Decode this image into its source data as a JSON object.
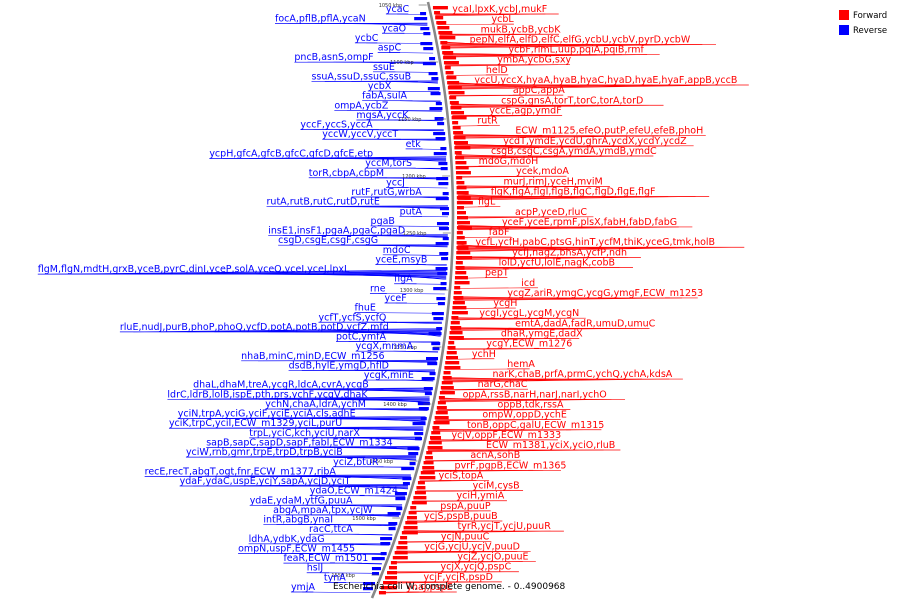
{
  "caption": "Escherichia coli W, complete genome. - 0..4900968",
  "legend": [
    {
      "label": "Forward",
      "color": "#ff0000"
    },
    {
      "label": "Reverse",
      "color": "#0000ff"
    }
  ],
  "colors": {
    "forward": "#ff0000",
    "reverse": "#0000ff",
    "backbone": "#888888"
  },
  "ticks": [
    "1050 kbp",
    "1100 kbp",
    "1150 kbp",
    "1200 kbp",
    "1250 kbp",
    "1300 kbp",
    "1350 kbp",
    "1400 kbp",
    "1450 kbp",
    "1500 kbp",
    "1550 kbp"
  ],
  "forward_labels": [
    [
      "ycaI",
      "lpxK",
      "ycbJ",
      "mukF"
    ],
    [
      "ycbL"
    ],
    [
      "mukB",
      "ycbB",
      "ycbK"
    ],
    [
      "pepN",
      "elfA",
      "elfD",
      "elfC",
      "elfG",
      "ycbU",
      "ycbV",
      "pyrD",
      "ycbW"
    ],
    [
      "ycbF",
      "rlmL",
      "uup",
      "pqiA",
      "pqiB",
      "rmf"
    ],
    [
      "ymbA",
      "ycbG",
      "sxy"
    ],
    [
      "helD"
    ],
    [
      "yccU",
      "yccX",
      "hyaA",
      "hyaB",
      "hyaC",
      "hyaD",
      "hyaE",
      "hyaF",
      "appB",
      "yccB"
    ],
    [
      "appC",
      "appA"
    ],
    [
      "cspG",
      "gnsA",
      "torT",
      "torC",
      "torA",
      "torD"
    ],
    [
      "yccE",
      "agp",
      "ymdF"
    ],
    [
      "rutR"
    ],
    [
      "ECW_m1125",
      "efeO",
      "putP",
      "efeU",
      "efeB",
      "phoH"
    ],
    [
      "ycdT",
      "ymdE",
      "ycdU",
      "ghrA",
      "ycdX",
      "ycdY",
      "ycdZ"
    ],
    [
      "csgB",
      "csgC",
      "csgA",
      "ymdA",
      "ymdB",
      "ymdC"
    ],
    [
      "mdoG",
      "mdoH"
    ],
    [
      "ycek",
      "mdoA"
    ],
    [
      "murJ",
      "rimJ",
      "yceH",
      "mviM"
    ],
    [
      "flgK",
      "flgA",
      "flgI",
      "flgB",
      "flgC",
      "flgD",
      "flgE",
      "flgF"
    ],
    [
      "flgL"
    ],
    [
      "acpP",
      "yceD",
      "rluC"
    ],
    [
      "yceF",
      "yceE",
      "rpmF",
      "plsX",
      "fabH",
      "fabD",
      "fabG"
    ],
    [
      "fabF"
    ],
    [
      "ycfL",
      "ycfH",
      "pabC",
      "ptsG",
      "hinT",
      "ycfM",
      "thiK",
      "yceG",
      "tmk",
      "holB"
    ],
    [
      "ycfJ",
      "nagZ",
      "bhsA",
      "ycfP",
      "ndh"
    ],
    [
      "lolD",
      "ycfU",
      "lolE",
      "nagK",
      "cobB"
    ],
    [
      "pepT"
    ],
    [
      "icd"
    ],
    [
      "ycgZ",
      "ariR",
      "ymgC",
      "ycgG",
      "ymgF",
      "ECW_m1253"
    ],
    [
      "ycgH"
    ],
    [
      "ycgI",
      "ycgL",
      "ycgM",
      "ycgN"
    ],
    [
      "emtA",
      "dadA",
      "fadR",
      "umuD",
      "umuC"
    ],
    [
      "dhaR",
      "ymgE",
      "dadX"
    ],
    [
      "ycgY",
      "ECW_m1276"
    ],
    [
      "ychH"
    ],
    [
      "hemA"
    ],
    [
      "narK",
      "chaB",
      "prfA",
      "prmC",
      "ychQ",
      "ychA",
      "kdsA"
    ],
    [
      "narG",
      "chaC"
    ],
    [
      "oppA",
      "rssB",
      "narH",
      "narJ",
      "narI",
      "ychO"
    ],
    [
      "oppB",
      "tdk",
      "rssA"
    ],
    [
      "ompW",
      "oppD",
      "ychE"
    ],
    [
      "tonB",
      "oppC",
      "galU",
      "ECW_m1315"
    ],
    [
      "ycjV",
      "oppF",
      "ECW_m1333"
    ],
    [
      "ECW_m1381",
      "yciX",
      "yciO",
      "rluB"
    ],
    [
      "acnA",
      "sohB"
    ],
    [
      "pvrF",
      "pgpB",
      "ECW_m1365"
    ],
    [
      "yciS",
      "topA"
    ],
    [
      "yciM",
      "cysB"
    ],
    [
      "yciH",
      "ymiA"
    ],
    [
      "pspA",
      "puuP"
    ],
    [
      "ycjS",
      "pspB",
      "puuB"
    ],
    [
      "tyrR",
      "ycjT",
      "ycjU",
      "puuR"
    ],
    [
      "ycjN",
      "puuC"
    ],
    [
      "ycjG",
      "ycjU",
      "ycjV",
      "puuD"
    ],
    [
      "ycjZ",
      "ycjO",
      "puuE"
    ],
    [
      "ycjX",
      "ycjQ",
      "pspC"
    ],
    [
      "ycjF",
      "ycjR",
      "pspD"
    ],
    [
      "ynaJ",
      "pspE"
    ]
  ],
  "reverse_labels": [
    [
      "ycaC"
    ],
    [
      "focA",
      "pflB",
      "pflA",
      "ycaN"
    ],
    [
      "ycaO"
    ],
    [
      "ycbC"
    ],
    [
      "aspC"
    ],
    [
      "pncB",
      "asnS",
      "ompF"
    ],
    [
      "ssuE"
    ],
    [
      "ssuA",
      "ssuD",
      "ssuC",
      "ssuB"
    ],
    [
      "ycbX"
    ],
    [
      "fabA",
      "sulA"
    ],
    [
      "ompA",
      "ycbZ"
    ],
    [
      "mgsA",
      "yccK"
    ],
    [
      "yccF",
      "yccS",
      "yccA"
    ],
    [
      "yccW",
      "yccV",
      "yccT"
    ],
    [
      "etk"
    ],
    [
      "ycpH",
      "gfcA",
      "gfcB",
      "gfcC",
      "gfcD",
      "gfcE",
      "etp"
    ],
    [
      "yccM",
      "torS"
    ],
    [
      "torR",
      "cbpA",
      "cbpM"
    ],
    [
      "yccJ"
    ],
    [
      "rutF",
      "rutG",
      "wrbA"
    ],
    [
      "rutA",
      "rutB",
      "rutC",
      "rutD",
      "rutE"
    ],
    [
      "putA"
    ],
    [
      "pgaB"
    ],
    [
      "insE1",
      "insF1",
      "pgaA",
      "pgaC",
      "pgaD"
    ],
    [
      "csgD",
      "csgE",
      "csgF",
      "csgG"
    ],
    [
      "mdoC"
    ],
    [
      "yceE",
      "msyB"
    ],
    [
      "flgM",
      "flgN",
      "mdtH",
      "grxB",
      "yceB",
      "pyrC",
      "dinI",
      "yceP",
      "solA",
      "yceO",
      "yceI",
      "yceJ",
      "lpxL"
    ],
    [
      "flgA"
    ],
    [
      "rne"
    ],
    [
      "yceF"
    ],
    [
      "fhuE"
    ],
    [
      "ycfT",
      "ycfS",
      "ycfQ"
    ],
    [
      "rluE",
      "nudJ",
      "purB",
      "phoP",
      "phoQ",
      "ycfD",
      "potA",
      "potB",
      "potD",
      "ycfZ",
      "mfd"
    ],
    [
      "potC",
      "ymfA"
    ],
    [
      "ycgX",
      "mnmA"
    ],
    [
      "nhaB",
      "minC",
      "minD",
      "ECW_m1256"
    ],
    [
      "dsdB",
      "hylE",
      "ymgD",
      "hflD"
    ],
    [
      "ycgK",
      "minE"
    ],
    [
      "dhaL",
      "dhaM",
      "treA",
      "ycgR",
      "ldcA",
      "cvrA",
      "ycgB"
    ],
    [
      "ldrC",
      "ldrB",
      "lolB",
      "ispE",
      "pth",
      "prs",
      "ychF",
      "ycgV",
      "dhaK"
    ],
    [
      "ychN",
      "chaA",
      "ldrA",
      "ychM"
    ],
    [
      "yciN",
      "trpA",
      "yciG",
      "yciF",
      "yciE",
      "yciA",
      "cls",
      "adhE"
    ],
    [
      "yciK",
      "trpC",
      "yciI",
      "ECW_m1329",
      "yciL",
      "purU"
    ],
    [
      "trpL",
      "yciC",
      "kch",
      "yciU",
      "narX"
    ],
    [
      "sapB",
      "sapC",
      "sapD",
      "sapF",
      "fabI",
      "ECW_m1334"
    ],
    [
      "yciW",
      "rnb",
      "gmr",
      "trpE",
      "trpD",
      "trpB",
      "yciB"
    ],
    [
      "yciZ",
      "btuR"
    ],
    [
      "recE",
      "recT",
      "abgT",
      "ogt",
      "fnr",
      "ECW_m1377",
      "ribA"
    ],
    [
      "ydaF",
      "ydaC",
      "uspE",
      "ycjY",
      "sapA",
      "ycjD",
      "yciT"
    ],
    [
      "ydaO",
      "ECW_m1424"
    ],
    [
      "ydaE",
      "ydaM",
      "ytfG",
      "puuA"
    ],
    [
      "abgA",
      "mpaA",
      "tpx",
      "ycjW"
    ],
    [
      "intR",
      "abgB",
      "ynaI"
    ],
    [
      "racC",
      "ttcA"
    ],
    [
      "ldhA",
      "ydbK",
      "ydaG"
    ],
    [
      "ompN",
      "uspF",
      "ECW_m1455"
    ],
    [
      "feaR",
      "ECW_m1501"
    ],
    [
      "hslJ"
    ],
    [
      "tynA"
    ],
    [
      "ymjA"
    ]
  ]
}
